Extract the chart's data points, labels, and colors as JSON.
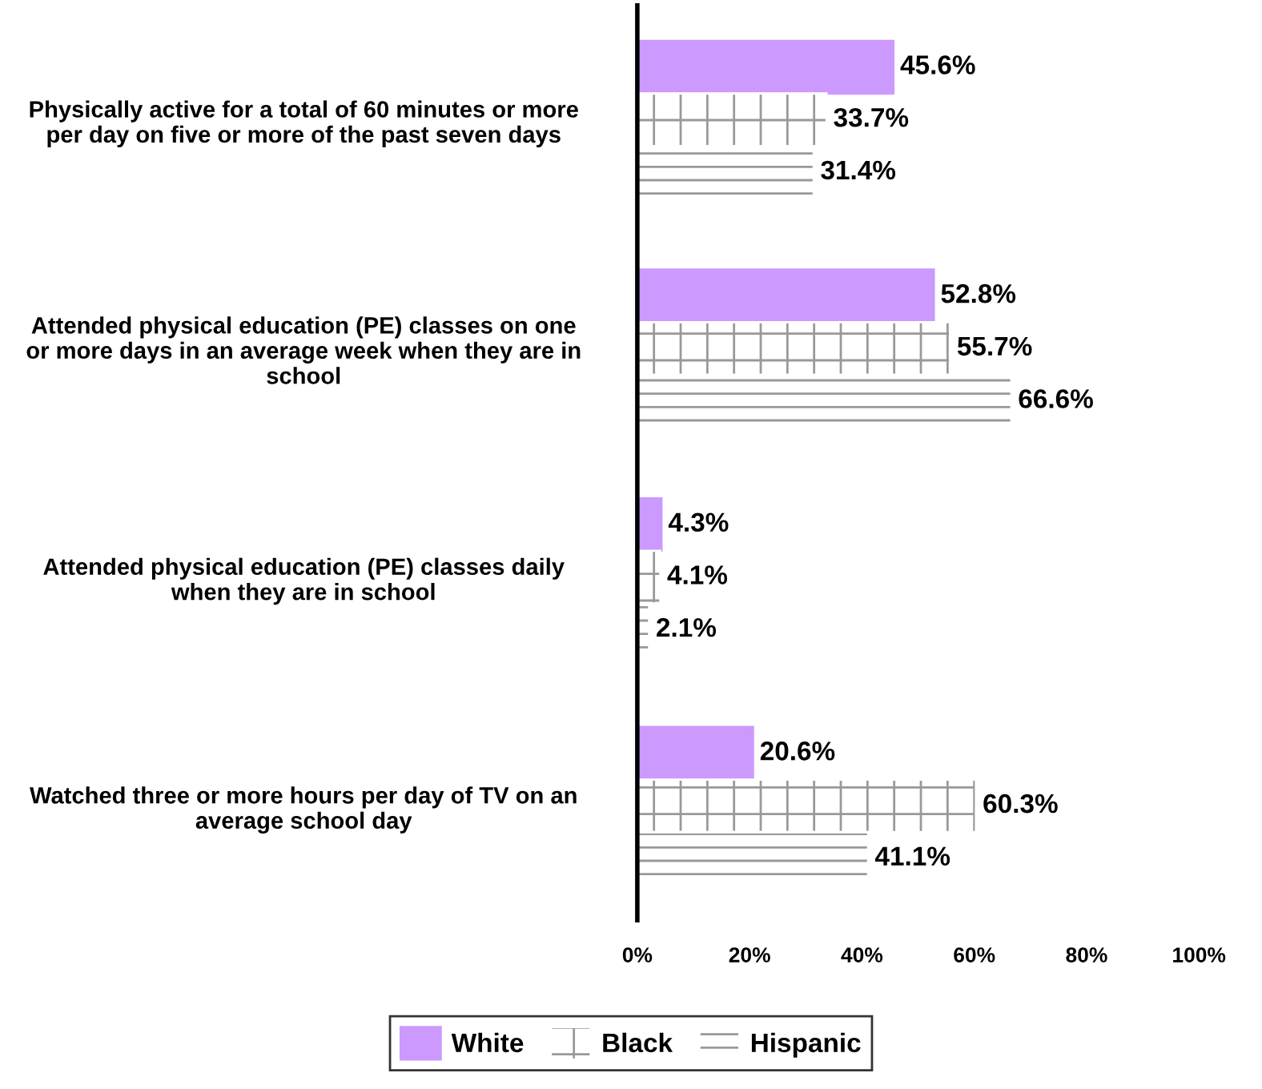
{
  "chart_data": {
    "type": "bar",
    "orientation": "horizontal",
    "categories": [
      "Physically active for a total of 60 minutes or more\nper day on five or more of the past seven days",
      "Attended physical education (PE) classes on one\nor more days in an average week when they are in\nschool",
      "Attended physical education (PE) classes daily\nwhen they are in school",
      "Watched three or more hours per day of TV on an\naverage school day"
    ],
    "series": [
      {
        "name": "White",
        "color": "#cc99ff",
        "values": [
          45.6,
          52.8,
          4.3,
          20.6
        ],
        "value_labels": [
          "45.6%",
          "52.8%",
          "4.3%",
          "20.6%"
        ]
      },
      {
        "name": "Black",
        "color": "#ffffff",
        "values": [
          33.7,
          55.7,
          4.1,
          60.3
        ],
        "value_labels": [
          "33.7%",
          "55.7%",
          "4.1%",
          "60.3%"
        ]
      },
      {
        "name": "Hispanic",
        "color": "#ffffff",
        "values": [
          31.4,
          66.6,
          2.1,
          41.1
        ],
        "value_labels": [
          "31.4%",
          "66.6%",
          "2.1%",
          "41.1%"
        ]
      }
    ],
    "xlim": [
      0,
      100
    ],
    "xticks": [
      {
        "value": 0,
        "label": "0%"
      },
      {
        "value": 20,
        "label": "20%"
      },
      {
        "value": 40,
        "label": "40%"
      },
      {
        "value": 60,
        "label": "60%"
      },
      {
        "value": 80,
        "label": "80%"
      },
      {
        "value": 100,
        "label": "100%"
      }
    ],
    "grid": false,
    "legend": "bottom"
  }
}
